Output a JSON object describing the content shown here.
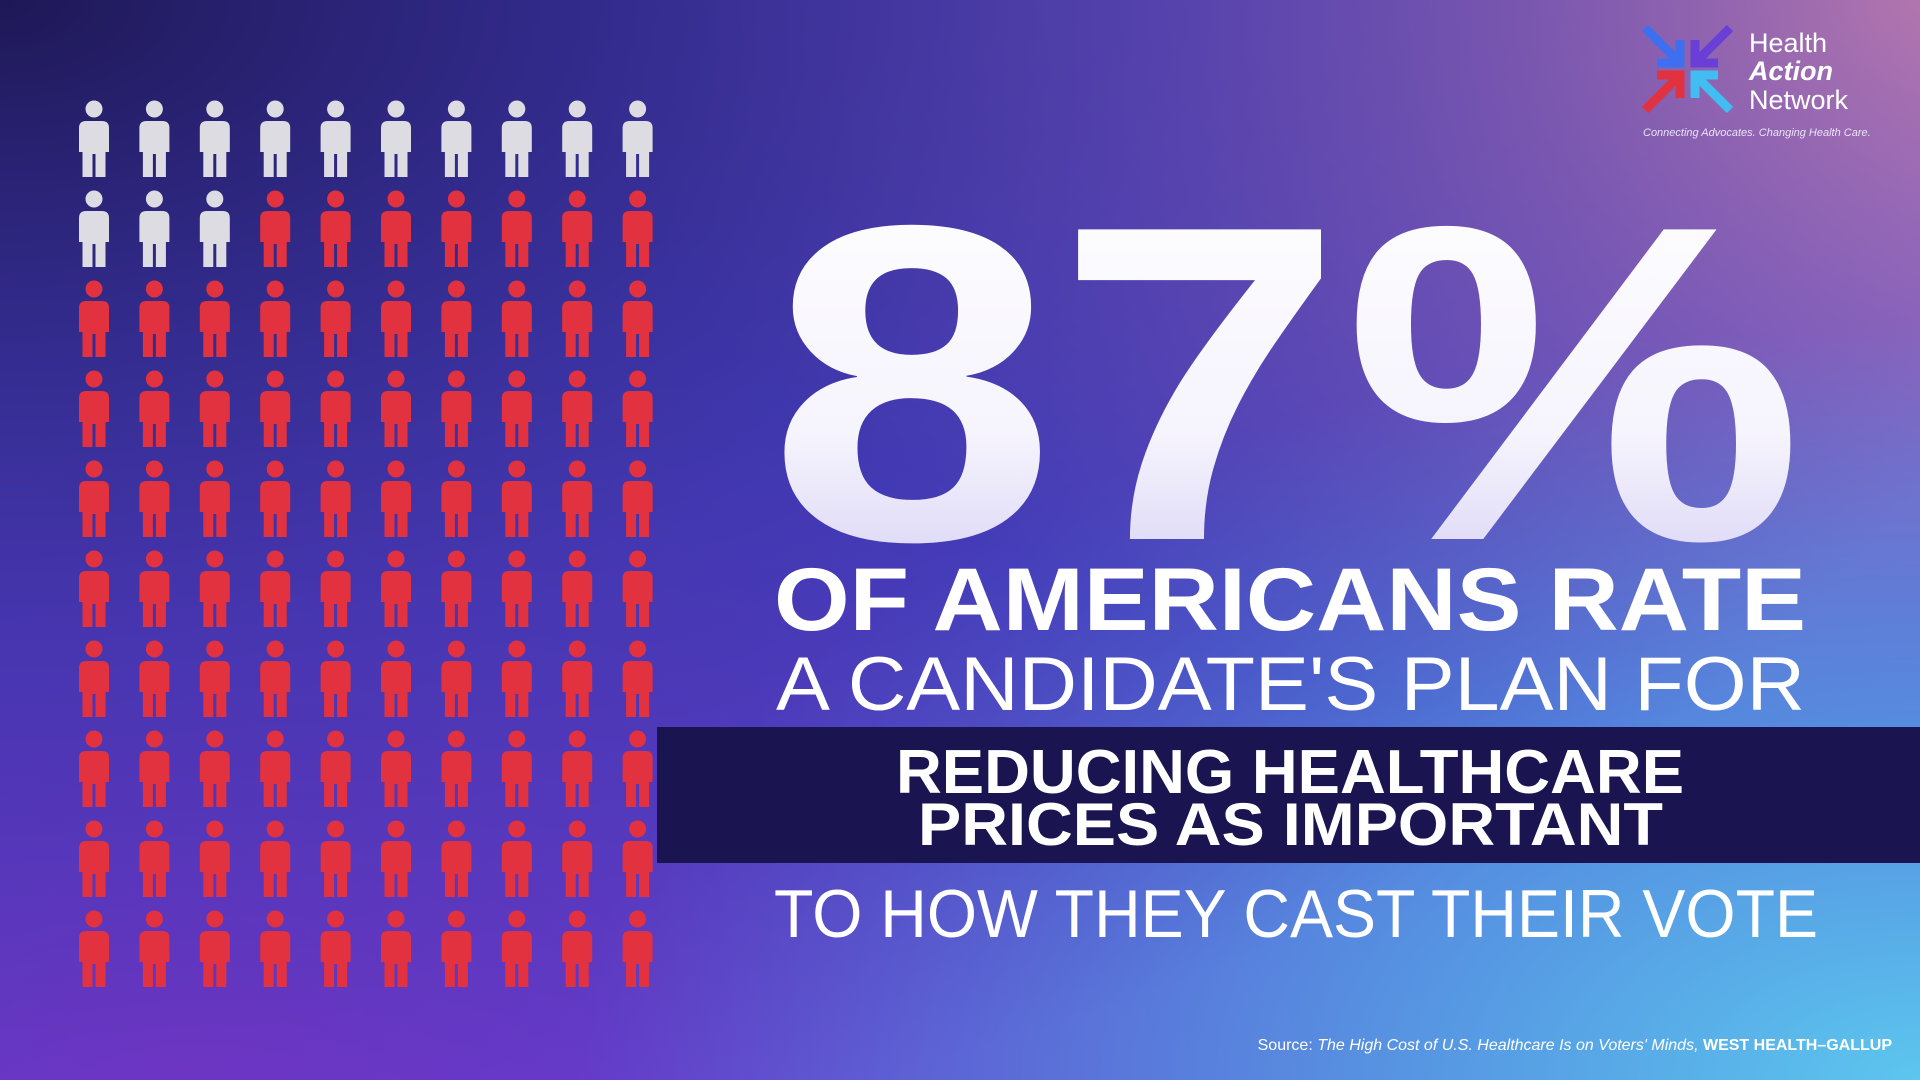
{
  "chart_data": {
    "type": "pictogram",
    "value": 87,
    "value_label": "87%",
    "headline": [
      "OF AMERICANS RATE",
      "A CANDIDATE'S PLAN FOR"
    ],
    "highlight": [
      "REDUCING HEALTHCARE",
      "PRICES AS IMPORTANT"
    ],
    "closing": "TO HOW THEY CAST THEIR VOTE",
    "colors": {
      "filled": "#e2323f",
      "empty": "#dcdce2"
    },
    "source": {
      "prefix": "Source:",
      "title": "The High Cost of U.S. Healthcare Is on Voters' Minds,",
      "publisher": "WEST HEALTH–GALLUP"
    }
  },
  "logo": {
    "name": [
      "Health",
      "Action",
      "Network"
    ],
    "tagline": "Connecting Advocates. Changing Health Care."
  }
}
